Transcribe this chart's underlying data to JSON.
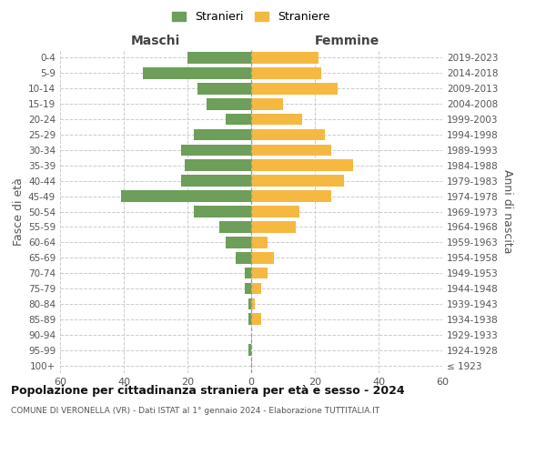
{
  "age_groups": [
    "100+",
    "95-99",
    "90-94",
    "85-89",
    "80-84",
    "75-79",
    "70-74",
    "65-69",
    "60-64",
    "55-59",
    "50-54",
    "45-49",
    "40-44",
    "35-39",
    "30-34",
    "25-29",
    "20-24",
    "15-19",
    "10-14",
    "5-9",
    "0-4"
  ],
  "birth_years": [
    "≤ 1923",
    "1924-1928",
    "1929-1933",
    "1934-1938",
    "1939-1943",
    "1944-1948",
    "1949-1953",
    "1954-1958",
    "1959-1963",
    "1964-1968",
    "1969-1973",
    "1974-1978",
    "1979-1983",
    "1984-1988",
    "1989-1993",
    "1994-1998",
    "1999-2003",
    "2004-2008",
    "2009-2013",
    "2014-2018",
    "2019-2023"
  ],
  "males": [
    0,
    1,
    0,
    1,
    1,
    2,
    2,
    5,
    8,
    10,
    18,
    41,
    22,
    21,
    22,
    18,
    8,
    14,
    17,
    34,
    20
  ],
  "females": [
    0,
    0,
    0,
    3,
    1,
    3,
    5,
    7,
    5,
    14,
    15,
    25,
    29,
    32,
    25,
    23,
    16,
    10,
    27,
    22,
    21
  ],
  "male_color": "#6d9e5a",
  "female_color": "#f5b942",
  "grid_color": "#cccccc",
  "title": "Popolazione per cittadinanza straniera per età e sesso - 2024",
  "subtitle": "COMUNE DI VERONELLA (VR) - Dati ISTAT al 1° gennaio 2024 - Elaborazione TUTTITALIA.IT",
  "xlabel_left": "Maschi",
  "xlabel_right": "Femmine",
  "ylabel_left": "Fasce di età",
  "ylabel_right": "Anni di nascita",
  "legend_male": "Stranieri",
  "legend_female": "Straniere",
  "xlim": 60,
  "background_color": "#ffffff",
  "xticks": [
    -60,
    -40,
    -20,
    0,
    20,
    40,
    60
  ]
}
